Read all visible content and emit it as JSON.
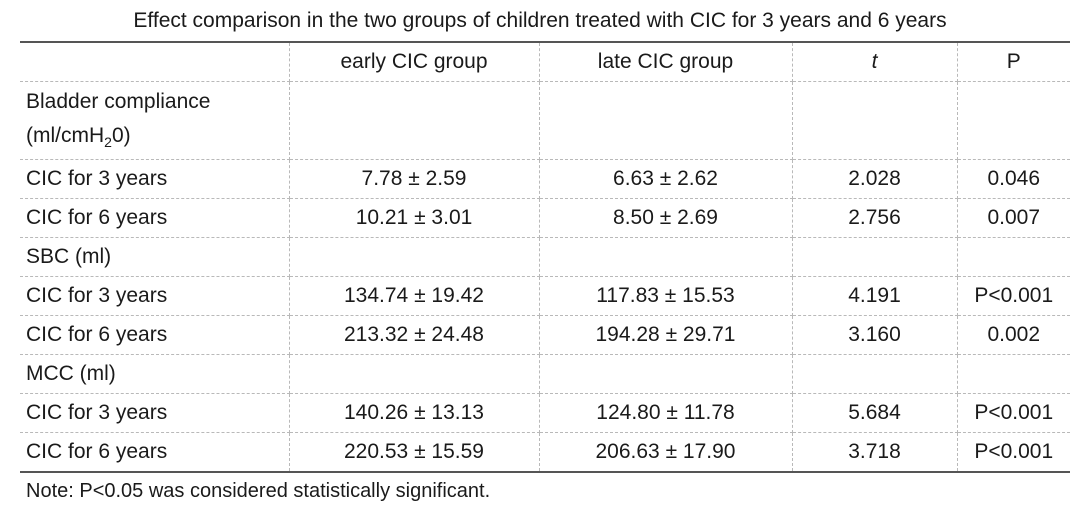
{
  "title": "Effect comparison in the two groups of children treated with CIC for 3 years and 6 years",
  "table": {
    "headers": [
      "",
      "early CIC group",
      "late CIC group",
      "t",
      "P"
    ],
    "groups": [
      {
        "label_line1": "Bladder compliance",
        "label_line2_prefix": "(ml/cmH",
        "label_line2_sub": "2",
        "label_line2_suffix": "0)",
        "rows": [
          {
            "label": "CIC for 3 years",
            "early": "7.78 ± 2.59",
            "late": "6.63 ± 2.62",
            "t": "2.028",
            "p": "0.046"
          },
          {
            "label": "CIC for 6 years",
            "early": "10.21 ± 3.01",
            "late": "8.50 ± 2.69",
            "t": "2.756",
            "p": "0.007"
          }
        ]
      },
      {
        "label": "SBC (ml)",
        "rows": [
          {
            "label": "CIC for 3 years",
            "early": "134.74 ± 19.42",
            "late": "117.83 ± 15.53",
            "t": "4.191",
            "p": "P<0.001"
          },
          {
            "label": "CIC for 6 years",
            "early": "213.32 ± 24.48",
            "late": "194.28 ± 29.71",
            "t": "3.160",
            "p": "0.002"
          }
        ]
      },
      {
        "label": "MCC (ml)",
        "rows": [
          {
            "label": "CIC for 3 years",
            "early": "140.26 ± 13.13",
            "late": "124.80 ± 11.78",
            "t": "5.684",
            "p": "P<0.001"
          },
          {
            "label": "CIC for 6 years",
            "early": "220.53 ± 15.59",
            "late": "206.63 ± 17.90",
            "t": "3.718",
            "p": "P<0.001"
          }
        ]
      }
    ]
  },
  "note": "Note: P<0.05 was considered statistically significant."
}
